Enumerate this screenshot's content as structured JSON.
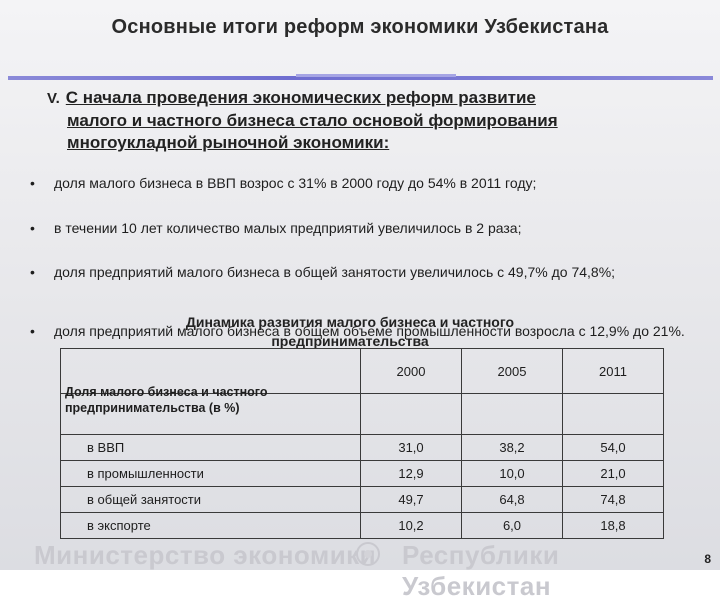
{
  "slide": {
    "title": "Основные итоги реформ экономики Узбекистана",
    "section_number": "V.",
    "heading_line1": "С начала проведения экономических реформ развитие",
    "heading_line2": "малого и частного бизнеса стало основой формирования",
    "heading_line3": "многоукладной  рыночной экономики:",
    "bullet_char": "•",
    "bullets": [
      "доля малого бизнеса в ВВП возрос с 31% в 2000 году до 54% в 2011 году;",
      "в течении 10 лет количество малых предприятий  увеличилось в 2 раза;",
      "доля предприятий малого бизнеса в общей занятости увеличилось с 49,7% до 74,8%;",
      "доля предприятий малого бизнеса в общем объеме промышленности возросла с 12,9% до 21%."
    ],
    "table_title_line1": "Динамика развития малого бизнеса и частного",
    "table_title_line2": "предпринимательства"
  },
  "table": {
    "years": [
      "2000",
      "2005",
      "2011"
    ],
    "group_label": "Доля малого бизнеса и частного предпринимательства (в %)",
    "rows": [
      {
        "label": "в ВВП",
        "values": [
          "31,0",
          "38,2",
          "54,0"
        ]
      },
      {
        "label": "в промышленности",
        "values": [
          "12,9",
          "10,0",
          "21,0"
        ]
      },
      {
        "label": "в общей занятости",
        "values": [
          "49,7",
          "64,8",
          "74,8"
        ]
      },
      {
        "label": "в экспорте",
        "values": [
          "10,2",
          "6,0",
          "18,8"
        ]
      }
    ]
  },
  "footer": {
    "text_left": "Министерство экономики",
    "text_right": "Республики Узбекистан",
    "emblem_icon": "state-emblem-icon",
    "page_number": "8"
  }
}
